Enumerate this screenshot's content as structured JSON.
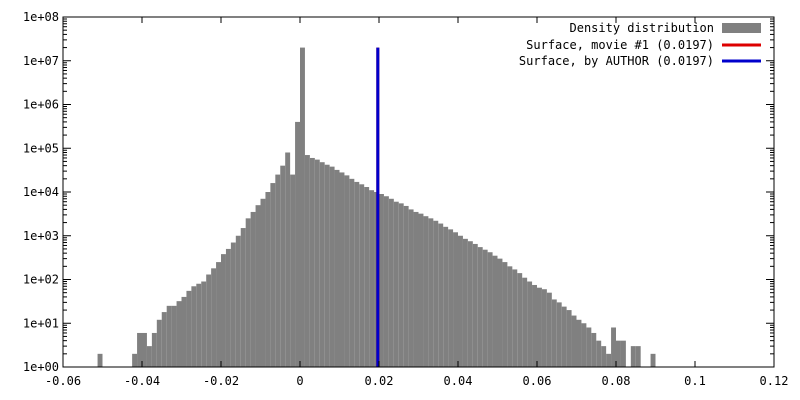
{
  "chart_data": {
    "type": "bar",
    "title": "",
    "xlabel": "",
    "ylabel": "",
    "x_scale": "linear",
    "y_scale": "log",
    "xlim": [
      -0.06,
      0.12
    ],
    "ylim": [
      1,
      100000000
    ],
    "x_ticks": [
      -0.06,
      -0.04,
      -0.02,
      0,
      0.02,
      0.04,
      0.06,
      0.08,
      0.1,
      0.12
    ],
    "x_tick_labels": [
      "-0.06",
      "-0.04",
      "-0.02",
      "0",
      "0.02",
      "0.04",
      "0.06",
      "0.08",
      "0.1",
      "0.12"
    ],
    "y_ticks": [
      1,
      10,
      100,
      1000,
      10000,
      100000,
      1000000,
      10000000,
      100000000
    ],
    "y_tick_labels": [
      "1e+00",
      "1e+01",
      "1e+02",
      "1e+03",
      "1e+04",
      "1e+05",
      "1e+06",
      "1e+07",
      "1e+08"
    ],
    "grid": false,
    "legend_position": "top-right",
    "bin_width": 0.00125,
    "series": [
      {
        "name": "Density distribution",
        "kind": "histogram",
        "color": "#808080",
        "bins_x": [
          -0.05125,
          -0.0475,
          -0.04625,
          -0.045,
          -0.04375,
          -0.0425,
          -0.04125,
          -0.04,
          -0.03875,
          -0.0375,
          -0.03625,
          -0.035,
          -0.03375,
          -0.0325,
          -0.03125,
          -0.03,
          -0.02875,
          -0.0275,
          -0.02625,
          -0.025,
          -0.02375,
          -0.0225,
          -0.02125,
          -0.02,
          -0.01875,
          -0.0175,
          -0.01625,
          -0.015,
          -0.01375,
          -0.0125,
          -0.01125,
          -0.01,
          -0.00875,
          -0.0075,
          -0.00625,
          -0.005,
          -0.00375,
          -0.0025,
          -0.00125,
          0,
          0.00125,
          0.0025,
          0.00375,
          0.005,
          0.00625,
          0.0075,
          0.00875,
          0.01,
          0.01125,
          0.0125,
          0.01375,
          0.015,
          0.01625,
          0.0175,
          0.01875,
          0.02,
          0.02125,
          0.0225,
          0.02375,
          0.025,
          0.02625,
          0.0275,
          0.02875,
          0.03,
          0.03125,
          0.0325,
          0.03375,
          0.035,
          0.03625,
          0.0375,
          0.03875,
          0.04,
          0.04125,
          0.0425,
          0.04375,
          0.045,
          0.04625,
          0.0475,
          0.04875,
          0.05,
          0.05125,
          0.0525,
          0.05375,
          0.055,
          0.05625,
          0.0575,
          0.05875,
          0.06,
          0.06125,
          0.0625,
          0.06375,
          0.065,
          0.06625,
          0.0675,
          0.06875,
          0.07,
          0.07125,
          0.0725,
          0.07375,
          0.075,
          0.07625,
          0.0775,
          0.07875,
          0.08,
          0.08125,
          0.0825,
          0.08375,
          0.085,
          0.08625,
          0.0875,
          0.08875,
          0.09,
          0.09125
        ],
        "values": [
          2,
          1,
          1,
          1,
          1,
          2,
          6,
          6,
          3,
          6,
          12,
          18,
          25,
          25,
          32,
          40,
          55,
          70,
          80,
          90,
          130,
          180,
          250,
          380,
          500,
          700,
          1000,
          1500,
          2500,
          3500,
          5000,
          7000,
          10000,
          16000,
          25000,
          40000,
          80000,
          25000,
          400000,
          20000000,
          70000,
          60000,
          55000,
          48000,
          42000,
          38000,
          32000,
          28000,
          24000,
          20000,
          17000,
          15000,
          13000,
          11000,
          10000,
          9000,
          8000,
          7000,
          6000,
          5500,
          4800,
          4000,
          3500,
          3200,
          2800,
          2500,
          2200,
          1900,
          1600,
          1400,
          1200,
          1000,
          850,
          750,
          650,
          550,
          480,
          420,
          350,
          300,
          250,
          200,
          170,
          140,
          110,
          90,
          75,
          65,
          60,
          50,
          35,
          30,
          24,
          20,
          15,
          12,
          10,
          8,
          6,
          4,
          3,
          2,
          8,
          4,
          4,
          1,
          3,
          3,
          1,
          1,
          2,
          1,
          1
        ]
      },
      {
        "name": "Surface, movie #1 (0.0197)",
        "kind": "vline",
        "color": "#dd0000",
        "x": 0.0197,
        "y_top": 20000000
      },
      {
        "name": "Surface, by AUTHOR (0.0197)",
        "kind": "vline",
        "color": "#0000cc",
        "x": 0.0197,
        "y_top": 20000000
      }
    ]
  }
}
